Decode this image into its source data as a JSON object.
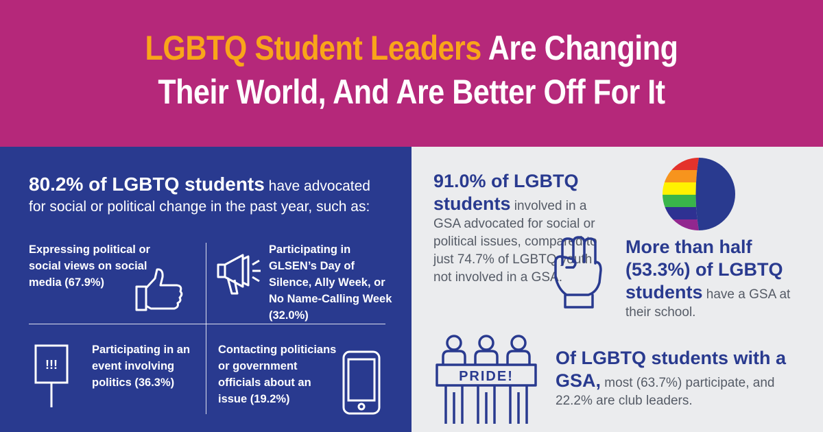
{
  "header": {
    "title_highlight": "LGBTQ Student Leaders",
    "title_line1_rest": " Are Changing",
    "title_line2": "Their World, And Are Better Off For It",
    "background": "#b5287a",
    "highlight_color": "#f9a51a"
  },
  "left": {
    "background": "#293a8f",
    "intro_bold": "80.2% of LGBTQ students",
    "intro_rest": " have advocated for social or political change in the past year, such as:",
    "items": [
      {
        "text": "Expressing political or social views on social media (67.9%)",
        "icon": "thumbs-up-icon"
      },
      {
        "text": "Participating in GLSEN’s Day of Silence, Ally Week, or No Name-Calling Week (32.0%)",
        "icon": "megaphone-icon"
      },
      {
        "text": "Participating in an event involving politics (36.3%)",
        "icon": "protest-sign-icon",
        "sign_text": "!!!"
      },
      {
        "text": "Contacting politicians or government officials about an issue (19.2%)",
        "icon": "smartphone-icon"
      }
    ]
  },
  "right": {
    "stat1_bold": "91.0% of LGBTQ students",
    "stat1_rest": " involved in a GSA advocated for social or political issues, compared to just 74.7% of LGBTQ youth not involved in a GSA.",
    "stat2_bold": "More than half (53.3%) of LGBTQ students",
    "stat2_rest": " have a GSA at their school.",
    "stat3_bold": "Of LGBTQ students with a GSA,",
    "stat3_rest": " most (63.7%) participate, and 22.2% are club leaders.",
    "banner_text": "PRIDE!",
    "pie_share": 0.533,
    "rainbow": [
      "#e4322b",
      "#f7941d",
      "#fff200",
      "#39b54a",
      "#2e3192",
      "#92278f"
    ]
  }
}
